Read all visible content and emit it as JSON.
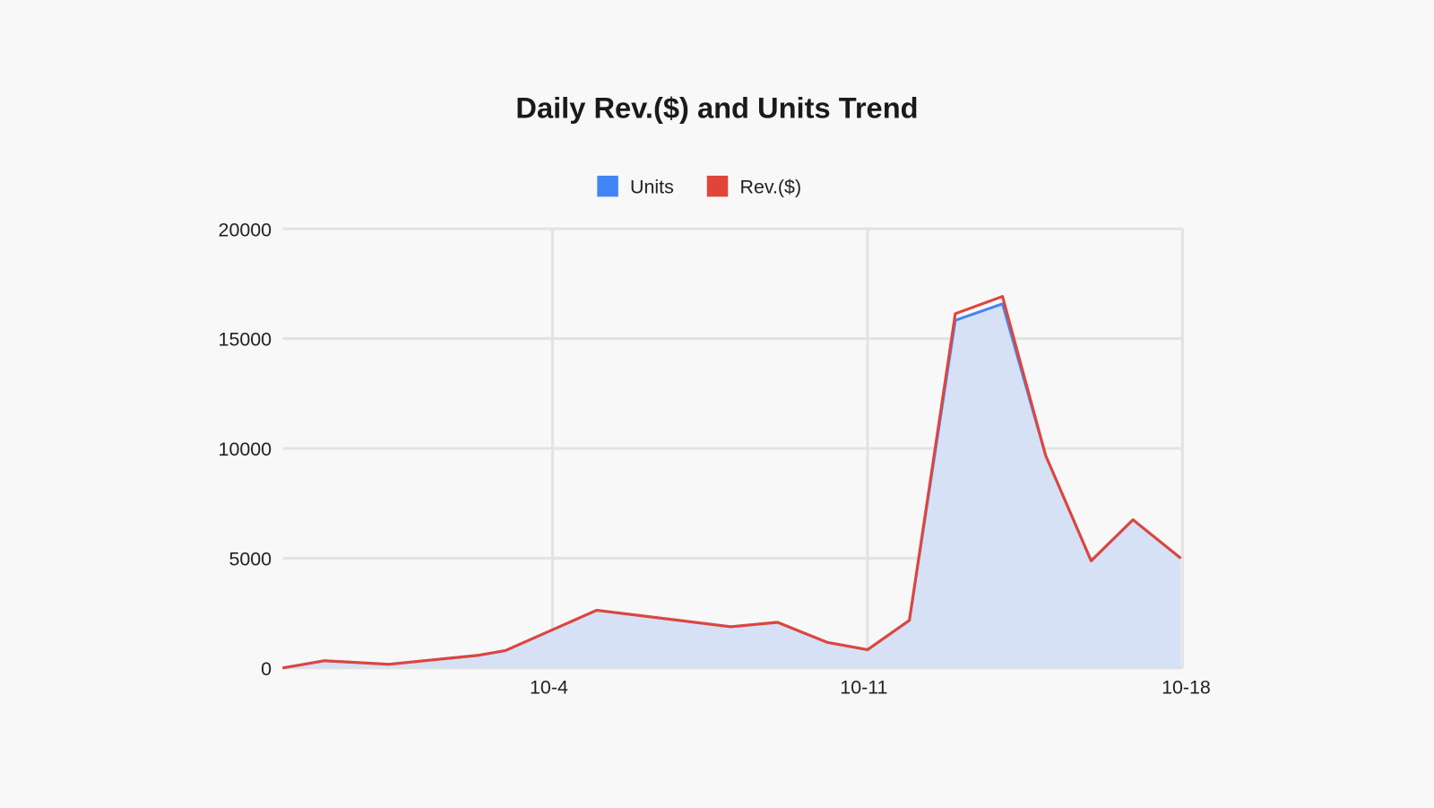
{
  "chart_data": {
    "type": "area",
    "title": "Daily Rev.($) and Units Trend",
    "xlabel": "",
    "ylabel": "",
    "ylim": [
      0,
      20000
    ],
    "xlim_days_from_start": [
      0,
      20
    ],
    "start_date": "9-28",
    "legend_position": "top",
    "grid": true,
    "y_ticks": [
      "0",
      "5000",
      "10000",
      "15000",
      "20000"
    ],
    "y_tick_values": [
      0,
      5000,
      10000,
      15000,
      20000
    ],
    "x_ticks": [
      {
        "label": "10-4",
        "day": 6
      },
      {
        "label": "10-11",
        "day": 13
      },
      {
        "label": "10-18",
        "day": 20
      }
    ],
    "x": [
      0,
      0.93,
      2.36,
      4.36,
      4.95,
      6.98,
      9.96,
      11.0,
      12.1,
      13.0,
      13.93,
      14.95,
      16.0,
      16.96,
      17.97,
      18.9,
      19.96
    ],
    "series": [
      {
        "name": "Units",
        "color": "#4285f4",
        "fill": "#d6e1f5",
        "values": [
          0,
          330,
          170,
          580,
          790,
          2630,
          1880,
          2080,
          1170,
          830,
          2170,
          15830,
          16580,
          9670,
          4880,
          6750,
          5000
        ]
      },
      {
        "name": "Rev.($)",
        "color": "#e2443a",
        "values": [
          0,
          330,
          170,
          580,
          790,
          2630,
          1880,
          2080,
          1170,
          830,
          2170,
          16130,
          16920,
          9670,
          4880,
          6750,
          5000
        ]
      }
    ]
  }
}
